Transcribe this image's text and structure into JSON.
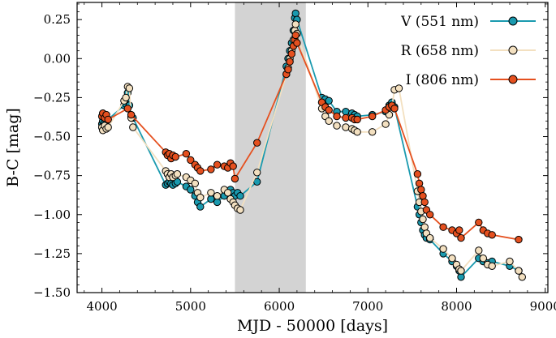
{
  "chart_data": {
    "type": "line",
    "xlabel": "MJD - 50000 [days]",
    "ylabel": "B-C [mag]",
    "xlim": [
      3720,
      9030
    ],
    "ylim": [
      -1.5,
      0.36
    ],
    "xticks": [
      4000,
      5000,
      6000,
      7000,
      8000,
      9000
    ],
    "yticks": [
      0.25,
      0.0,
      -0.25,
      -0.5,
      -0.75,
      -1.0,
      -1.25,
      -1.5
    ],
    "xtick_labels": [
      "4000",
      "5000",
      "6000",
      "7000",
      "8000",
      "9000"
    ],
    "ytick_labels": [
      "0.25",
      "0.00",
      "−0.25",
      "−0.50",
      "−0.75",
      "−1.00",
      "−1.25",
      "−1.50"
    ],
    "shaded_region": {
      "x": [
        5500,
        6300
      ],
      "color": "#d3d3d3"
    },
    "grid": false,
    "legend_position": "top-right",
    "series": [
      {
        "name": "V (551 nm)",
        "color": "#1a9aaf",
        "points": [
          [
            4000,
            -0.42
          ],
          [
            4010,
            -0.4
          ],
          [
            4030,
            -0.41
          ],
          [
            4050,
            -0.4
          ],
          [
            4070,
            -0.39
          ],
          [
            4250,
            -0.3
          ],
          [
            4270,
            -0.29
          ],
          [
            4290,
            -0.22
          ],
          [
            4310,
            -0.3
          ],
          [
            4330,
            -0.37
          ],
          [
            4350,
            -0.38
          ],
          [
            4720,
            -0.81
          ],
          [
            4740,
            -0.8
          ],
          [
            4760,
            -0.79
          ],
          [
            4780,
            -0.8
          ],
          [
            4800,
            -0.81
          ],
          [
            4830,
            -0.8
          ],
          [
            4850,
            -0.79
          ],
          [
            4950,
            -0.82
          ],
          [
            5000,
            -0.84
          ],
          [
            5050,
            -0.88
          ],
          [
            5080,
            -0.92
          ],
          [
            5110,
            -0.95
          ],
          [
            5230,
            -0.9
          ],
          [
            5300,
            -0.92
          ],
          [
            5380,
            -0.88
          ],
          [
            5420,
            -0.86
          ],
          [
            5450,
            -0.84
          ],
          [
            5480,
            -0.86
          ],
          [
            5500,
            -0.88
          ],
          [
            5530,
            -0.86
          ],
          [
            5560,
            -0.88
          ],
          [
            5750,
            -0.79
          ],
          [
            6080,
            -0.05
          ],
          [
            6100,
            0.0
          ],
          [
            6120,
            0.05
          ],
          [
            6140,
            0.1
          ],
          [
            6160,
            0.18
          ],
          [
            6175,
            0.26
          ],
          [
            6185,
            0.29
          ],
          [
            6200,
            0.25
          ],
          [
            6480,
            -0.25
          ],
          [
            6520,
            -0.26
          ],
          [
            6560,
            -0.27
          ],
          [
            6650,
            -0.34
          ],
          [
            6750,
            -0.34
          ],
          [
            6820,
            -0.35
          ],
          [
            6850,
            -0.36
          ],
          [
            6880,
            -0.37
          ],
          [
            7050,
            -0.36
          ],
          [
            7200,
            -0.34
          ],
          [
            7240,
            -0.3
          ],
          [
            7270,
            -0.28
          ],
          [
            7300,
            -0.31
          ],
          [
            7560,
            -0.95
          ],
          [
            7580,
            -1.0
          ],
          [
            7600,
            -1.05
          ],
          [
            7620,
            -1.1
          ],
          [
            7640,
            -1.13
          ],
          [
            7660,
            -1.15
          ],
          [
            7700,
            -1.16
          ],
          [
            7850,
            -1.25
          ],
          [
            7950,
            -1.3
          ],
          [
            8000,
            -1.33
          ],
          [
            8030,
            -1.36
          ],
          [
            8050,
            -1.4
          ],
          [
            8250,
            -1.28
          ],
          [
            8300,
            -1.3
          ],
          [
            8350,
            -1.31
          ],
          [
            8400,
            -1.3
          ],
          [
            8600,
            -1.33
          ],
          [
            8700,
            -1.36
          ]
        ]
      },
      {
        "name": "R (658 nm)",
        "color": "#f3e0c0",
        "points": [
          [
            4000,
            -0.44
          ],
          [
            4010,
            -0.46
          ],
          [
            4030,
            -0.43
          ],
          [
            4050,
            -0.45
          ],
          [
            4070,
            -0.44
          ],
          [
            4250,
            -0.27
          ],
          [
            4270,
            -0.25
          ],
          [
            4290,
            -0.18
          ],
          [
            4310,
            -0.19
          ],
          [
            4330,
            -0.38
          ],
          [
            4350,
            -0.44
          ],
          [
            4720,
            -0.72
          ],
          [
            4740,
            -0.74
          ],
          [
            4760,
            -0.76
          ],
          [
            4780,
            -0.74
          ],
          [
            4800,
            -0.76
          ],
          [
            4830,
            -0.75
          ],
          [
            4850,
            -0.74
          ],
          [
            4950,
            -0.76
          ],
          [
            5000,
            -0.78
          ],
          [
            5050,
            -0.8
          ],
          [
            5080,
            -0.86
          ],
          [
            5110,
            -0.89
          ],
          [
            5230,
            -0.86
          ],
          [
            5300,
            -0.88
          ],
          [
            5380,
            -0.84
          ],
          [
            5420,
            -0.86
          ],
          [
            5450,
            -0.9
          ],
          [
            5480,
            -0.92
          ],
          [
            5500,
            -0.94
          ],
          [
            5530,
            -0.96
          ],
          [
            5560,
            -0.97
          ],
          [
            5750,
            -0.73
          ],
          [
            6080,
            -0.1
          ],
          [
            6100,
            -0.06
          ],
          [
            6120,
            0.0
          ],
          [
            6140,
            0.05
          ],
          [
            6160,
            0.12
          ],
          [
            6175,
            0.18
          ],
          [
            6185,
            0.22
          ],
          [
            6200,
            0.16
          ],
          [
            6480,
            -0.32
          ],
          [
            6520,
            -0.37
          ],
          [
            6560,
            -0.4
          ],
          [
            6650,
            -0.43
          ],
          [
            6750,
            -0.44
          ],
          [
            6820,
            -0.45
          ],
          [
            6850,
            -0.46
          ],
          [
            6880,
            -0.47
          ],
          [
            7050,
            -0.47
          ],
          [
            7200,
            -0.42
          ],
          [
            7240,
            -0.36
          ],
          [
            7270,
            -0.31
          ],
          [
            7300,
            -0.2
          ],
          [
            7350,
            -0.19
          ],
          [
            7560,
            -0.85
          ],
          [
            7580,
            -0.92
          ],
          [
            7600,
            -0.98
          ],
          [
            7620,
            -1.03
          ],
          [
            7640,
            -1.08
          ],
          [
            7660,
            -1.12
          ],
          [
            7700,
            -1.15
          ],
          [
            7850,
            -1.22
          ],
          [
            7950,
            -1.28
          ],
          [
            8000,
            -1.32
          ],
          [
            8030,
            -1.35
          ],
          [
            8050,
            -1.36
          ],
          [
            8250,
            -1.23
          ],
          [
            8300,
            -1.28
          ],
          [
            8350,
            -1.32
          ],
          [
            8400,
            -1.33
          ],
          [
            8600,
            -1.3
          ],
          [
            8700,
            -1.36
          ],
          [
            8740,
            -1.4
          ]
        ]
      },
      {
        "name": "I (806 nm)",
        "color": "#e5501f",
        "points": [
          [
            4000,
            -0.37
          ],
          [
            4010,
            -0.35
          ],
          [
            4030,
            -0.38
          ],
          [
            4050,
            -0.36
          ],
          [
            4070,
            -0.39
          ],
          [
            4290,
            -0.32
          ],
          [
            4330,
            -0.36
          ],
          [
            4720,
            -0.6
          ],
          [
            4740,
            -0.62
          ],
          [
            4760,
            -0.61
          ],
          [
            4780,
            -0.64
          ],
          [
            4800,
            -0.62
          ],
          [
            4830,
            -0.63
          ],
          [
            4950,
            -0.61
          ],
          [
            5000,
            -0.65
          ],
          [
            5050,
            -0.68
          ],
          [
            5080,
            -0.7
          ],
          [
            5110,
            -0.72
          ],
          [
            5230,
            -0.71
          ],
          [
            5300,
            -0.68
          ],
          [
            5380,
            -0.69
          ],
          [
            5420,
            -0.7
          ],
          [
            5450,
            -0.67
          ],
          [
            5480,
            -0.69
          ],
          [
            5500,
            -0.77
          ],
          [
            5750,
            -0.54
          ],
          [
            6080,
            -0.1
          ],
          [
            6100,
            -0.07
          ],
          [
            6120,
            -0.02
          ],
          [
            6140,
            0.03
          ],
          [
            6160,
            0.08
          ],
          [
            6175,
            0.12
          ],
          [
            6185,
            0.15
          ],
          [
            6200,
            0.1
          ],
          [
            6480,
            -0.28
          ],
          [
            6520,
            -0.31
          ],
          [
            6560,
            -0.33
          ],
          [
            6650,
            -0.37
          ],
          [
            6750,
            -0.38
          ],
          [
            6820,
            -0.38
          ],
          [
            6850,
            -0.39
          ],
          [
            6880,
            -0.39
          ],
          [
            7050,
            -0.37
          ],
          [
            7200,
            -0.33
          ],
          [
            7240,
            -0.31
          ],
          [
            7270,
            -0.3
          ],
          [
            7300,
            -0.32
          ],
          [
            7560,
            -0.74
          ],
          [
            7580,
            -0.8
          ],
          [
            7600,
            -0.84
          ],
          [
            7620,
            -0.88
          ],
          [
            7640,
            -0.92
          ],
          [
            7660,
            -0.97
          ],
          [
            7700,
            -1.0
          ],
          [
            7850,
            -1.08
          ],
          [
            7950,
            -1.1
          ],
          [
            8000,
            -1.12
          ],
          [
            8030,
            -1.1
          ],
          [
            8050,
            -1.15
          ],
          [
            8250,
            -1.05
          ],
          [
            8300,
            -1.1
          ],
          [
            8350,
            -1.12
          ],
          [
            8400,
            -1.13
          ],
          [
            8700,
            -1.16
          ]
        ]
      }
    ]
  }
}
